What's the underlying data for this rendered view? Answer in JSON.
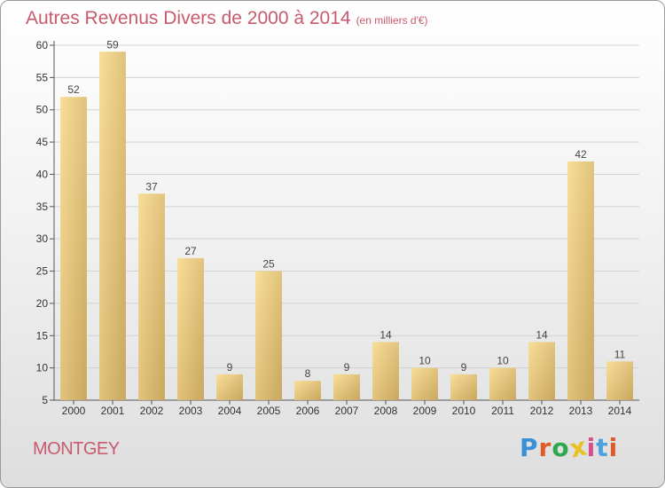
{
  "title": "Autres Revenus Divers de 2000 à 2014",
  "subtitle": "(en milliers d'€)",
  "commune": "MONTGEY",
  "logo": {
    "text": "Proxiti",
    "colors": [
      "#3a8fd6",
      "#e05a2a",
      "#2fa84f",
      "#e8c020",
      "#d94e8c",
      "#4aa3df",
      "#e05a2a"
    ]
  },
  "colors": {
    "title": "#c85a6e",
    "bar_light": "#f8de98",
    "bar_dark": "#c9a760"
  },
  "chart_data": {
    "type": "bar",
    "categories": [
      "2000",
      "2001",
      "2002",
      "2003",
      "2004",
      "2005",
      "2006",
      "2007",
      "2008",
      "2009",
      "2010",
      "2011",
      "2012",
      "2013",
      "2014"
    ],
    "values": [
      52,
      59,
      37,
      27,
      9,
      25,
      8,
      9,
      14,
      10,
      9,
      10,
      14,
      42,
      11
    ],
    "ylim": [
      5,
      60
    ],
    "yticks": [
      5,
      10,
      15,
      20,
      25,
      30,
      35,
      40,
      45,
      50,
      55,
      60
    ],
    "grid": true
  }
}
